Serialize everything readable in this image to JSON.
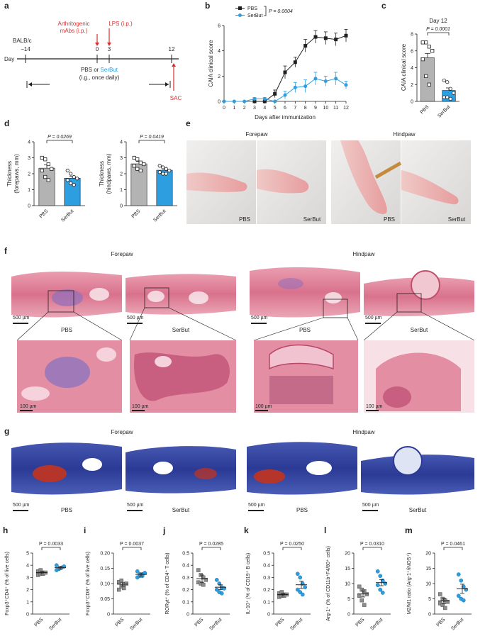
{
  "colors": {
    "pbs": "#231f20",
    "pbs_bar": "#b3b3b3",
    "serbut": "#2d9ee0",
    "serbut_bar": "#2d9ee0",
    "red": "#d6302c",
    "he_pink": "#e4899b",
    "he_purple": "#9a70b8",
    "masson_blue": "#2c3f9a",
    "masson_red": "#b5352b"
  },
  "panel_a": {
    "letter": "a",
    "strain": "BALB/c",
    "day_label": "Day",
    "ticks": [
      "−14",
      "0",
      "3",
      "12"
    ],
    "mabs_label_1": "Arthritogenic",
    "mabs_label_2": "mAbs (i.p.)",
    "lps_label": "LPS (i.p.)",
    "treatment_pbs": "PBS or ",
    "treatment_serbut": "SerBut",
    "schedule": "(i.g., once daily)",
    "sac": "SAC"
  },
  "panel_b": {
    "letter": "b",
    "legend_pbs": "PBS",
    "legend_serbut": "SerBut",
    "p_value": "P = 0.0004",
    "chart_data": {
      "type": "line",
      "xlabel": "Days after immunization",
      "ylabel": "CAIA clinical score",
      "xlim": [
        0,
        12
      ],
      "ylim": [
        0,
        6
      ],
      "x": [
        0,
        1,
        2,
        3,
        4,
        5,
        6,
        7,
        8,
        9,
        10,
        11,
        12
      ],
      "xticks": [
        "0",
        "1",
        "2",
        "3",
        "4",
        "5",
        "6",
        "7",
        "8",
        "9",
        "10",
        "11",
        "12"
      ],
      "yticks": [
        "0",
        "2",
        "4",
        "6"
      ],
      "series": [
        {
          "name": "PBS",
          "x": [
            3,
            4,
            5,
            6,
            7,
            8,
            9,
            10,
            11,
            12
          ],
          "values": [
            0,
            0,
            0.6,
            2.3,
            3.1,
            4.4,
            5.1,
            5.0,
            4.9,
            5.2
          ],
          "err": [
            0,
            0,
            0.3,
            0.5,
            0.4,
            0.5,
            0.5,
            0.5,
            0.5,
            0.5
          ]
        },
        {
          "name": "SerBut",
          "x": [
            0,
            1,
            2,
            3,
            4,
            5,
            6,
            7,
            8,
            9,
            10,
            11,
            12
          ],
          "values": [
            0,
            0,
            0,
            0.2,
            0.2,
            0,
            0.5,
            1.1,
            1.2,
            1.8,
            1.6,
            1.8,
            1.3
          ],
          "err": [
            0,
            0,
            0,
            0.1,
            0.1,
            0,
            0.3,
            0.4,
            0.5,
            0.5,
            0.4,
            0.5,
            0.3
          ]
        }
      ]
    }
  },
  "panel_c": {
    "letter": "c",
    "p_value": "P = 0.0001",
    "chart_data": {
      "type": "bar",
      "title": "Day 12",
      "ylabel": "CAIA clinical score",
      "categories": [
        "PBS",
        "SerBut"
      ],
      "values": [
        5.2,
        1.3
      ],
      "err": [
        0.5,
        0.3
      ],
      "ylim": [
        0,
        8
      ],
      "yticks": [
        "0",
        "2",
        "4",
        "6",
        "8"
      ],
      "points": [
        [
          7,
          7,
          6.5,
          6,
          5,
          3,
          2
        ],
        [
          2.5,
          2.3,
          1.5,
          1,
          0.5,
          0.5,
          0.3
        ]
      ]
    }
  },
  "panel_d": {
    "letter": "d",
    "charts": [
      {
        "type": "bar",
        "ylabel_1": "Thickness",
        "ylabel_2": "(forepaws, mm)",
        "p_value": "P = 0.0269",
        "categories": [
          "PBS",
          "SerBut"
        ],
        "values": [
          2.35,
          1.72
        ],
        "err": [
          0.2,
          0.12
        ],
        "ylim": [
          0,
          4
        ],
        "yticks": [
          "0",
          "1",
          "2",
          "3",
          "4"
        ],
        "points": [
          [
            3.0,
            2.9,
            2.6,
            2.3,
            2.2,
            1.8,
            1.6
          ],
          [
            2.2,
            2.0,
            1.8,
            1.7,
            1.6,
            1.4,
            1.3
          ]
        ]
      },
      {
        "type": "bar",
        "ylabel_1": "Thickness",
        "ylabel_2": "(hindpaws, mm)",
        "p_value": "P = 0.0419",
        "categories": [
          "PBS",
          "SerBut"
        ],
        "values": [
          2.62,
          2.22
        ],
        "err": [
          0.15,
          0.08
        ],
        "ylim": [
          0,
          4
        ],
        "yticks": [
          "0",
          "1",
          "2",
          "3",
          "4"
        ],
        "points": [
          [
            3.0,
            2.9,
            2.7,
            2.6,
            2.5,
            2.3,
            2.2
          ],
          [
            2.5,
            2.4,
            2.3,
            2.2,
            2.1,
            2.0,
            2.0
          ]
        ]
      }
    ]
  },
  "panel_e": {
    "letter": "e",
    "forepaw": "Forepaw",
    "hindpaw": "Hindpaw",
    "labels": [
      "PBS",
      "SerBut",
      "PBS",
      "SerBut"
    ]
  },
  "panel_f": {
    "letter": "f",
    "forepaw": "Forepaw",
    "hindpaw": "Hindpaw",
    "labels": [
      "PBS",
      "SerBut",
      "PBS",
      "SerBut"
    ],
    "scale_top": "500 µm",
    "scale_bottom": "100 µm"
  },
  "panel_g": {
    "letter": "g",
    "forepaw": "Forepaw",
    "hindpaw": "Hindpaw",
    "labels": [
      "PBS",
      "SerBut",
      "PBS",
      "SerBut"
    ],
    "scale": "500 µm"
  },
  "scatter_panels": [
    {
      "letter": "h",
      "ylabel": "Foxp3⁺CD4⁺ (% of live cells)",
      "p_value": "P = 0.0033",
      "chart_data": {
        "type": "scatter",
        "categories": [
          "PBS",
          "SerBut"
        ],
        "ylim": [
          0,
          5
        ],
        "yticks": [
          "0",
          "1",
          "2",
          "3",
          "4",
          "5"
        ],
        "means": [
          3.4,
          3.8
        ],
        "err": [
          0.1,
          0.1
        ],
        "points": [
          [
            3.2,
            3.3,
            3.4,
            3.4,
            3.5,
            3.6,
            3.3
          ],
          [
            3.6,
            3.7,
            3.8,
            3.9,
            4.0,
            3.7,
            3.8
          ]
        ]
      }
    },
    {
      "letter": "i",
      "ylabel": "Foxp3⁺CD8⁺ (% of live cells)",
      "p_value": "P = 0.0037",
      "chart_data": {
        "type": "scatter",
        "categories": [
          "PBS",
          "SerBut"
        ],
        "ylim": [
          0,
          0.2
        ],
        "yticks": [
          "0",
          "0.05",
          "0.10",
          "0.15",
          "0.20"
        ],
        "means": [
          0.098,
          0.13
        ],
        "err": [
          0.006,
          0.005
        ],
        "points": [
          [
            0.08,
            0.09,
            0.095,
            0.1,
            0.105,
            0.11,
            0.085
          ],
          [
            0.12,
            0.125,
            0.13,
            0.135,
            0.14,
            0.13,
            0.125
          ]
        ]
      }
    },
    {
      "letter": "j",
      "ylabel": "RORγt⁺ (% of CD4⁺ T cells)",
      "p_value": "P = 0.0285",
      "chart_data": {
        "type": "scatter",
        "categories": [
          "PBS",
          "SerBut"
        ],
        "ylim": [
          0,
          0.5
        ],
        "yticks": [
          "0",
          "0.1",
          "0.2",
          "0.3",
          "0.4",
          "0.5"
        ],
        "means": [
          0.29,
          0.22
        ],
        "err": [
          0.03,
          0.02
        ],
        "points": [
          [
            0.36,
            0.32,
            0.3,
            0.28,
            0.26,
            0.25,
            0.24
          ],
          [
            0.28,
            0.25,
            0.22,
            0.21,
            0.2,
            0.18,
            0.17
          ]
        ]
      }
    },
    {
      "letter": "k",
      "ylabel": "IL-10⁺ (% of CD19⁺ B cells)",
      "p_value": "P = 0.0250",
      "chart_data": {
        "type": "scatter",
        "categories": [
          "PBS",
          "SerBut"
        ],
        "ylim": [
          0,
          0.5
        ],
        "yticks": [
          "0",
          "0.1",
          "0.2",
          "0.3",
          "0.4",
          "0.5"
        ],
        "means": [
          0.16,
          0.24
        ],
        "err": [
          0.01,
          0.03
        ],
        "points": [
          [
            0.14,
            0.15,
            0.16,
            0.16,
            0.17,
            0.18,
            0.15
          ],
          [
            0.33,
            0.3,
            0.25,
            0.22,
            0.2,
            0.18,
            0.16
          ]
        ]
      }
    },
    {
      "letter": "l",
      "ylabel": "Arg-1⁺ (% of CD11b⁺F4/80⁺ cells)",
      "p_value": "P = 0.0310",
      "chart_data": {
        "type": "scatter",
        "categories": [
          "PBS",
          "SerBut"
        ],
        "ylim": [
          0,
          20
        ],
        "yticks": [
          "0",
          "5",
          "10",
          "15",
          "20"
        ],
        "means": [
          6.6,
          10.3
        ],
        "err": [
          1.0,
          1.0
        ],
        "points": [
          [
            9.0,
            8.0,
            7.5,
            6.5,
            6.0,
            4.5,
            3.0
          ],
          [
            14.0,
            12.5,
            11.0,
            10.0,
            9.5,
            8.0,
            7.0
          ]
        ]
      }
    },
    {
      "letter": "m",
      "ylabel": "M2/M1 ratio (Arg-1⁺/iNOS⁺)",
      "p_value": "P = 0.0461",
      "chart_data": {
        "type": "scatter",
        "categories": [
          "PBS",
          "SerBut"
        ],
        "ylim": [
          0,
          20
        ],
        "yticks": [
          "0",
          "5",
          "10",
          "15",
          "20"
        ],
        "means": [
          4.3,
          8.3
        ],
        "err": [
          0.9,
          1.5
        ],
        "points": [
          [
            6.5,
            5.0,
            4.5,
            4.0,
            3.5,
            3.0,
            2.0
          ],
          [
            13.0,
            11.0,
            9.0,
            8.0,
            6.0,
            5.0,
            4.5
          ]
        ]
      }
    }
  ]
}
